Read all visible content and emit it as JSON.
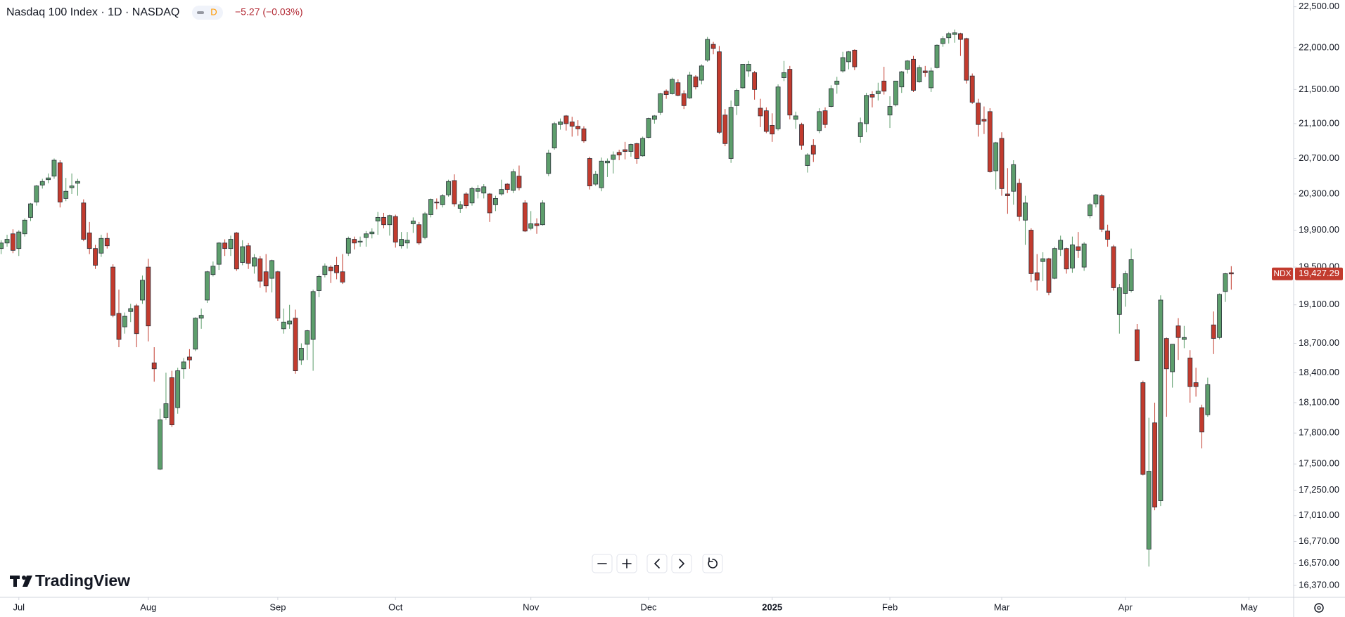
{
  "header": {
    "title": "Nasdaq 100 Index · 1D · NASDAQ",
    "badge": "D",
    "change": "−5.27 (−0.03%)"
  },
  "brand": "TradingView",
  "chart_data": {
    "type": "candlestick",
    "symbol": "NDX",
    "yscale": "log",
    "up_color": "#5d9e6c",
    "down_color": "#c23b2e",
    "last_price": {
      "value": 19427.29,
      "label": "19,427.29"
    },
    "ylim": [
      16263,
      22584
    ],
    "yticks": [
      {
        "value": 22500,
        "label": "22,500.00"
      },
      {
        "value": 22000,
        "label": "22,000.00"
      },
      {
        "value": 21500,
        "label": "21,500.00"
      },
      {
        "value": 21100,
        "label": "21,100.00"
      },
      {
        "value": 20700,
        "label": "20,700.00"
      },
      {
        "value": 20300,
        "label": "20,300.00"
      },
      {
        "value": 19900,
        "label": "19,900.00"
      },
      {
        "value": 19500,
        "label": "19,500.00"
      },
      {
        "value": 19100,
        "label": "19,100.00"
      },
      {
        "value": 18700,
        "label": "18,700.00"
      },
      {
        "value": 18400,
        "label": "18,400.00"
      },
      {
        "value": 18100,
        "label": "18,100.00"
      },
      {
        "value": 17800,
        "label": "17,800.00"
      },
      {
        "value": 17500,
        "label": "17,500.00"
      },
      {
        "value": 17250,
        "label": "17,250.00"
      },
      {
        "value": 17010,
        "label": "17,010.00"
      },
      {
        "value": 16770,
        "label": "16,770.00"
      },
      {
        "value": 16570,
        "label": "16,570.00"
      },
      {
        "value": 16370,
        "label": "16,370.00"
      }
    ],
    "xlim": [
      -0.2,
      219.6
    ],
    "xticks": [
      {
        "value": 3,
        "label": "Jul"
      },
      {
        "value": 25,
        "label": "Aug"
      },
      {
        "value": 47,
        "label": "Sep"
      },
      {
        "value": 67,
        "label": "Oct"
      },
      {
        "value": 90,
        "label": "Nov"
      },
      {
        "value": 110,
        "label": "Dec"
      },
      {
        "value": 131,
        "label": "2025"
      },
      {
        "value": 151,
        "label": "Feb"
      },
      {
        "value": 170,
        "label": "Mar"
      },
      {
        "value": 191,
        "label": "Apr"
      },
      {
        "value": 212,
        "label": "May"
      }
    ],
    "ohlc": [
      [
        19700,
        19790,
        19640,
        19760
      ],
      [
        19760,
        19850,
        19720,
        19800
      ],
      [
        19860,
        19910,
        19650,
        19680
      ],
      [
        19700,
        19900,
        19620,
        19880
      ],
      [
        19860,
        20030,
        19830,
        20010
      ],
      [
        20040,
        20200,
        20000,
        20190
      ],
      [
        20210,
        20400,
        20170,
        20390
      ],
      [
        20400,
        20470,
        20360,
        20440
      ],
      [
        20460,
        20530,
        20420,
        20480
      ],
      [
        20500,
        20700,
        20470,
        20680
      ],
      [
        20650,
        20680,
        20150,
        20210
      ],
      [
        20250,
        20480,
        20220,
        20330
      ],
      [
        20370,
        20530,
        20300,
        20390
      ],
      [
        20420,
        20470,
        20280,
        20440
      ],
      [
        20200,
        20240,
        19780,
        19800
      ],
      [
        19870,
        19990,
        19640,
        19700
      ],
      [
        19700,
        19740,
        19480,
        19520
      ],
      [
        19650,
        19850,
        19610,
        19810
      ],
      [
        19810,
        19870,
        19700,
        19730
      ],
      [
        19500,
        19530,
        18970,
        18990
      ],
      [
        19010,
        19260,
        18660,
        18740
      ],
      [
        18870,
        19020,
        18800,
        18980
      ],
      [
        19030,
        19110,
        18920,
        19060
      ],
      [
        19090,
        19110,
        18660,
        18800
      ],
      [
        19150,
        19410,
        19110,
        19360
      ],
      [
        19500,
        19590,
        18720,
        18880
      ],
      [
        18500,
        18660,
        18310,
        18440
      ],
      [
        17450,
        18040,
        17440,
        17930
      ],
      [
        17950,
        18400,
        17930,
        18090
      ],
      [
        18350,
        18420,
        17860,
        17880
      ],
      [
        18050,
        18450,
        17990,
        18420
      ],
      [
        18440,
        18550,
        18340,
        18510
      ],
      [
        18560,
        18640,
        18440,
        18530
      ],
      [
        18640,
        18970,
        18620,
        18960
      ],
      [
        18960,
        19060,
        18850,
        18990
      ],
      [
        19150,
        19460,
        19120,
        19450
      ],
      [
        19420,
        19560,
        19400,
        19510
      ],
      [
        19530,
        19770,
        19470,
        19760
      ],
      [
        19760,
        19800,
        19620,
        19700
      ],
      [
        19700,
        19840,
        19620,
        19800
      ],
      [
        19870,
        19880,
        19460,
        19480
      ],
      [
        19550,
        19790,
        19520,
        19720
      ],
      [
        19730,
        19760,
        19480,
        19540
      ],
      [
        19510,
        19640,
        19430,
        19600
      ],
      [
        19590,
        19620,
        19280,
        19350
      ],
      [
        19450,
        19640,
        19230,
        19300
      ],
      [
        19380,
        19580,
        19230,
        19570
      ],
      [
        19450,
        19460,
        18930,
        18960
      ],
      [
        18850,
        19060,
        18800,
        18920
      ],
      [
        18900,
        19100,
        18850,
        18930
      ],
      [
        18960,
        19050,
        18390,
        18420
      ],
      [
        18530,
        18700,
        18480,
        18650
      ],
      [
        18690,
        18840,
        18530,
        18830
      ],
      [
        18740,
        19260,
        18420,
        19240
      ],
      [
        19250,
        19420,
        19180,
        19400
      ],
      [
        19420,
        19540,
        19390,
        19510
      ],
      [
        19500,
        19520,
        19330,
        19460
      ],
      [
        19520,
        19610,
        19370,
        19440
      ],
      [
        19450,
        19640,
        19320,
        19340
      ],
      [
        19650,
        19830,
        19620,
        19810
      ],
      [
        19800,
        19830,
        19690,
        19760
      ],
      [
        19770,
        19830,
        19720,
        19780
      ],
      [
        19820,
        19890,
        19720,
        19860
      ],
      [
        19860,
        19920,
        19810,
        19880
      ],
      [
        20000,
        20100,
        19850,
        20040
      ],
      [
        20040,
        20090,
        19920,
        19960
      ],
      [
        19960,
        20070,
        19840,
        20060
      ],
      [
        20050,
        20070,
        19710,
        19770
      ],
      [
        19730,
        19880,
        19700,
        19800
      ],
      [
        19760,
        19880,
        19700,
        19790
      ],
      [
        19970,
        20040,
        19870,
        20000
      ],
      [
        19960,
        19990,
        19740,
        19760
      ],
      [
        19820,
        20100,
        19800,
        20080
      ],
      [
        20070,
        20250,
        20040,
        20240
      ],
      [
        20210,
        20250,
        20130,
        20200
      ],
      [
        20180,
        20300,
        20150,
        20280
      ],
      [
        20290,
        20460,
        20270,
        20440
      ],
      [
        20450,
        20520,
        20160,
        20190
      ],
      [
        20140,
        20220,
        20090,
        20180
      ],
      [
        20300,
        20320,
        20140,
        20170
      ],
      [
        20200,
        20380,
        20170,
        20360
      ],
      [
        20330,
        20400,
        20250,
        20360
      ],
      [
        20310,
        20410,
        20250,
        20380
      ],
      [
        20300,
        20310,
        19990,
        20090
      ],
      [
        20180,
        20280,
        20110,
        20250
      ],
      [
        20300,
        20460,
        20280,
        20350
      ],
      [
        20410,
        20420,
        20310,
        20350
      ],
      [
        20340,
        20580,
        20310,
        20550
      ],
      [
        20500,
        20620,
        20340,
        20370
      ],
      [
        20200,
        20230,
        19880,
        19890
      ],
      [
        19920,
        20110,
        19900,
        19970
      ],
      [
        19970,
        20030,
        19860,
        19950
      ],
      [
        19960,
        20230,
        19950,
        20200
      ],
      [
        20530,
        20800,
        20500,
        20760
      ],
      [
        20820,
        21120,
        20800,
        21100
      ],
      [
        21090,
        21160,
        21030,
        21120
      ],
      [
        21190,
        21200,
        21020,
        21100
      ],
      [
        21120,
        21180,
        20950,
        21070
      ],
      [
        21070,
        21140,
        20960,
        21040
      ],
      [
        21040,
        21070,
        20880,
        20900
      ],
      [
        20700,
        20720,
        20350,
        20390
      ],
      [
        20410,
        20560,
        20390,
        20520
      ],
      [
        20370,
        20710,
        20330,
        20670
      ],
      [
        20650,
        20700,
        20490,
        20670
      ],
      [
        20690,
        20780,
        20530,
        20740
      ],
      [
        20770,
        20800,
        20680,
        20740
      ],
      [
        20800,
        20890,
        20690,
        20780
      ],
      [
        20780,
        20870,
        20720,
        20860
      ],
      [
        20870,
        20880,
        20640,
        20700
      ],
      [
        20730,
        20950,
        20720,
        20930
      ],
      [
        20940,
        21170,
        20930,
        21160
      ],
      [
        21150,
        21200,
        21100,
        21190
      ],
      [
        21230,
        21460,
        21200,
        21450
      ],
      [
        21480,
        21500,
        21390,
        21440
      ],
      [
        21450,
        21640,
        21440,
        21620
      ],
      [
        21580,
        21620,
        21420,
        21430
      ],
      [
        21450,
        21490,
        21270,
        21310
      ],
      [
        21400,
        21710,
        21390,
        21670
      ],
      [
        21650,
        21670,
        21500,
        21530
      ],
      [
        21610,
        21800,
        21560,
        21780
      ],
      [
        21850,
        22130,
        21830,
        22100
      ],
      [
        22040,
        22070,
        21920,
        21990
      ],
      [
        21950,
        22020,
        20980,
        21000
      ],
      [
        21200,
        21270,
        20840,
        20870
      ],
      [
        20700,
        21370,
        20650,
        21290
      ],
      [
        21310,
        21510,
        21200,
        21490
      ],
      [
        21520,
        21800,
        21510,
        21800
      ],
      [
        21720,
        21840,
        21650,
        21800
      ],
      [
        21700,
        21720,
        21380,
        21500
      ],
      [
        21280,
        21390,
        21060,
        21190
      ],
      [
        21250,
        21290,
        20990,
        21010
      ],
      [
        21080,
        21220,
        20890,
        20980
      ],
      [
        21040,
        21560,
        21020,
        21530
      ],
      [
        21640,
        21840,
        21600,
        21700
      ],
      [
        21740,
        21780,
        21150,
        21200
      ],
      [
        21150,
        21240,
        21040,
        21190
      ],
      [
        21090,
        21110,
        20800,
        20850
      ],
      [
        20620,
        20760,
        20540,
        20740
      ],
      [
        20850,
        20920,
        20660,
        20750
      ],
      [
        21020,
        21280,
        20990,
        21240
      ],
      [
        21250,
        21290,
        21050,
        21090
      ],
      [
        21300,
        21550,
        21290,
        21510
      ],
      [
        21560,
        21650,
        21450,
        21600
      ],
      [
        21720,
        21950,
        21700,
        21880
      ],
      [
        21830,
        21960,
        21740,
        21950
      ],
      [
        21970,
        21980,
        21730,
        21770
      ],
      [
        20950,
        21170,
        20880,
        21110
      ],
      [
        21100,
        21460,
        21000,
        21430
      ],
      [
        21440,
        21480,
        21290,
        21410
      ],
      [
        21450,
        21580,
        21370,
        21480
      ],
      [
        21600,
        21770,
        21440,
        21480
      ],
      [
        21200,
        21420,
        21050,
        21300
      ],
      [
        21320,
        21600,
        21300,
        21600
      ],
      [
        21530,
        21720,
        21460,
        21710
      ],
      [
        21740,
        21850,
        21690,
        21840
      ],
      [
        21860,
        21900,
        21470,
        21490
      ],
      [
        21590,
        21790,
        21580,
        21760
      ],
      [
        21720,
        21780,
        21650,
        21700
      ],
      [
        21520,
        21760,
        21470,
        21720
      ],
      [
        21760,
        22040,
        21750,
        22030
      ],
      [
        22050,
        22140,
        22010,
        22110
      ],
      [
        22120,
        22190,
        22050,
        22170
      ],
      [
        22160,
        22220,
        22060,
        22180
      ],
      [
        22170,
        22180,
        21900,
        22100
      ],
      [
        22110,
        22120,
        21570,
        21610
      ],
      [
        21660,
        21690,
        21330,
        21350
      ],
      [
        21340,
        21390,
        20950,
        21090
      ],
      [
        21150,
        21300,
        20980,
        21130
      ],
      [
        21240,
        21280,
        20540,
        20550
      ],
      [
        20560,
        20890,
        20350,
        20880
      ],
      [
        20930,
        21000,
        20280,
        20360
      ],
      [
        20300,
        20590,
        20080,
        20280
      ],
      [
        20330,
        20680,
        20180,
        20630
      ],
      [
        20420,
        20470,
        20000,
        20050
      ],
      [
        20010,
        20280,
        19740,
        20200
      ],
      [
        19900,
        19920,
        19340,
        19430
      ],
      [
        19440,
        19640,
        19250,
        19360
      ],
      [
        19560,
        19660,
        19350,
        19590
      ],
      [
        19590,
        19600,
        19200,
        19230
      ],
      [
        19380,
        19720,
        19370,
        19700
      ],
      [
        19690,
        19840,
        19620,
        19790
      ],
      [
        19700,
        19710,
        19430,
        19480
      ],
      [
        19490,
        19830,
        19440,
        19740
      ],
      [
        19720,
        19880,
        19600,
        19680
      ],
      [
        19500,
        19770,
        19460,
        19750
      ],
      [
        20060,
        20200,
        20030,
        20180
      ],
      [
        20190,
        20300,
        20150,
        20290
      ],
      [
        20280,
        20300,
        19880,
        19910
      ],
      [
        19890,
        19960,
        19720,
        19800
      ],
      [
        19720,
        19740,
        19250,
        19280
      ],
      [
        19000,
        19320,
        18800,
        19280
      ],
      [
        19220,
        19460,
        19080,
        19430
      ],
      [
        19250,
        19700,
        19230,
        19580
      ],
      [
        18840,
        18900,
        18520,
        18520
      ],
      [
        18300,
        18320,
        17390,
        17400
      ],
      [
        16700,
        17950,
        16540,
        17430
      ],
      [
        17900,
        18100,
        17060,
        17090
      ],
      [
        17150,
        19200,
        17100,
        19150
      ],
      [
        18750,
        18760,
        17960,
        18440
      ],
      [
        18410,
        18690,
        18250,
        18690
      ],
      [
        18880,
        18960,
        18530,
        18760
      ],
      [
        18740,
        18880,
        18650,
        18760
      ],
      [
        18550,
        18630,
        18100,
        18260
      ],
      [
        18300,
        18450,
        18160,
        18260
      ],
      [
        18050,
        18080,
        17650,
        17810
      ],
      [
        17980,
        18350,
        17960,
        18280
      ],
      [
        18890,
        19030,
        18590,
        18750
      ],
      [
        18760,
        19220,
        18740,
        19210
      ],
      [
        19240,
        19440,
        19130,
        19430
      ],
      [
        19440,
        19510,
        19260,
        19427.29
      ]
    ]
  }
}
